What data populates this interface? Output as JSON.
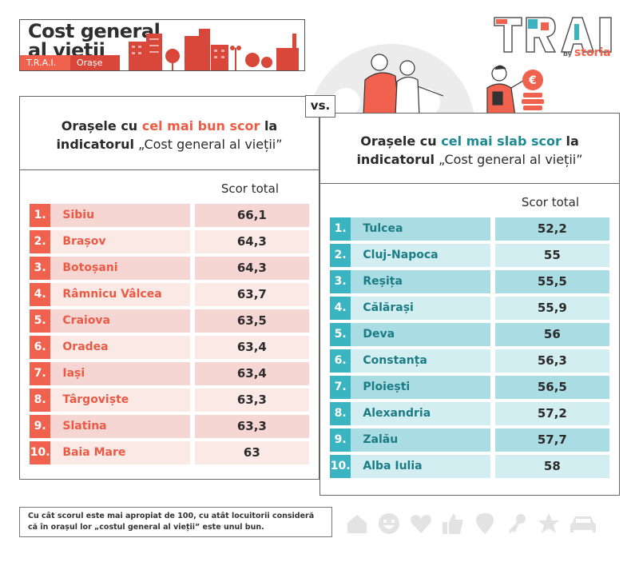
{
  "header": {
    "title_line1": "Cost general",
    "title_line2": "al vieții",
    "tags": [
      "T.R.A.I.",
      "Orașe"
    ],
    "logo": {
      "word": "TRAI",
      "by": "by",
      "brand": "storia"
    }
  },
  "vs_label": "vs.",
  "best": {
    "heading_pre": "Orașele cu ",
    "heading_highlight": "cel mai bun scor",
    "heading_post": " la",
    "heading_line2_bold": "indicatorul",
    "heading_line2_rest": " „Cost general al vieții”",
    "column_label": "Scor total",
    "accent_color": "#f0624e",
    "rows": [
      {
        "rank": "1.",
        "city": "Sibiu",
        "score": "66,1"
      },
      {
        "rank": "2.",
        "city": "Brașov",
        "score": "64,3"
      },
      {
        "rank": "3.",
        "city": "Botoșani",
        "score": "64,3"
      },
      {
        "rank": "4.",
        "city": "Râmnicu Vâlcea",
        "score": "63,7"
      },
      {
        "rank": "5.",
        "city": "Craiova",
        "score": "63,5"
      },
      {
        "rank": "6.",
        "city": "Oradea",
        "score": "63,4"
      },
      {
        "rank": "7.",
        "city": "Iași",
        "score": "63,4"
      },
      {
        "rank": "8.",
        "city": "Târgoviște",
        "score": "63,3"
      },
      {
        "rank": "9.",
        "city": "Slatina",
        "score": "63,3"
      },
      {
        "rank": "10.",
        "city": "Baia Mare",
        "score": "63"
      }
    ]
  },
  "worst": {
    "heading_pre": "Orașele cu ",
    "heading_highlight": "cel mai slab scor",
    "heading_post": " la",
    "heading_line2_bold": "indicatorul",
    "heading_line2_rest": " „Cost general al vieții”",
    "column_label": "Scor total",
    "accent_color": "#3bb4c1",
    "rows": [
      {
        "rank": "1.",
        "city": "Tulcea",
        "score": "52,2"
      },
      {
        "rank": "2.",
        "city": "Cluj-Napoca",
        "score": "55"
      },
      {
        "rank": "3.",
        "city": "Reșița",
        "score": "55,5"
      },
      {
        "rank": "4.",
        "city": "Călărași",
        "score": "55,9"
      },
      {
        "rank": "5.",
        "city": "Deva",
        "score": "56"
      },
      {
        "rank": "6.",
        "city": "Constanța",
        "score": "56,3"
      },
      {
        "rank": "7.",
        "city": "Ploiești",
        "score": "56,5"
      },
      {
        "rank": "8.",
        "city": "Alexandria",
        "score": "57,2"
      },
      {
        "rank": "9.",
        "city": "Zalău",
        "score": "57,7"
      },
      {
        "rank": "10.",
        "city": "Alba Iulia",
        "score": "58"
      }
    ]
  },
  "footnote": "Cu cât scorul este mai apropiat de 100, cu atât locuitorii consideră că în orașul lor „costul general al vieții” este unul bun.",
  "icons": [
    "house-icon",
    "smiley-icon",
    "heart-icon",
    "thumbs-up-icon",
    "location-pin-icon",
    "key-icon",
    "star-icon",
    "car-icon"
  ]
}
